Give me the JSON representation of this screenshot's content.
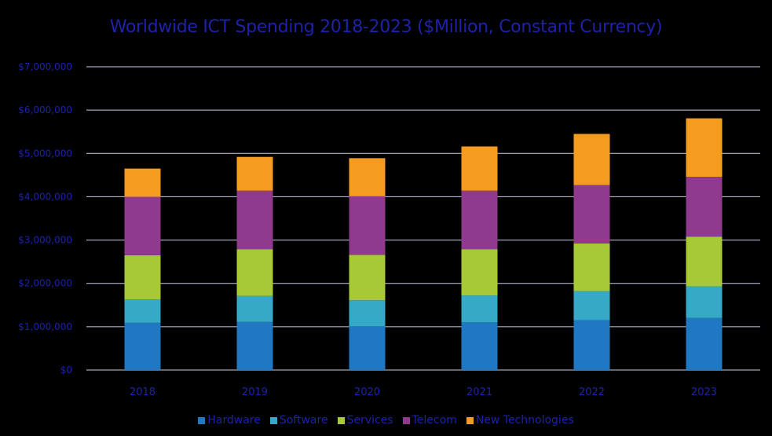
{
  "chart_data": {
    "type": "bar",
    "stacked": true,
    "title": "Worldwide ICT Spending 2018-2023 ($Million, Constant Currency)",
    "xlabel": "",
    "ylabel": "",
    "ylim": [
      0,
      7000000
    ],
    "y_ticks": [
      "$0",
      "$1,000,000",
      "$2,000,000",
      "$3,000,000",
      "$4,000,000",
      "$5,000,000",
      "$6,000,000",
      "$7,000,000"
    ],
    "grid": true,
    "legend_position": "bottom",
    "categories": [
      "2018",
      "2019",
      "2020",
      "2021",
      "2022",
      "2023"
    ],
    "series": [
      {
        "name": "Hardware",
        "color": "#1f78c1",
        "values": [
          1090000,
          1110000,
          1010000,
          1100000,
          1150000,
          1200000
        ]
      },
      {
        "name": "Software",
        "color": "#36a9c6",
        "values": [
          540000,
          600000,
          600000,
          620000,
          670000,
          730000
        ]
      },
      {
        "name": "Services",
        "color": "#a7c936",
        "values": [
          1020000,
          1080000,
          1050000,
          1070000,
          1100000,
          1150000
        ]
      },
      {
        "name": "Telecom",
        "color": "#8f3a8c",
        "values": [
          1350000,
          1350000,
          1350000,
          1350000,
          1350000,
          1380000
        ]
      },
      {
        "name": "New Technologies",
        "color": "#f59b1f",
        "values": [
          650000,
          780000,
          880000,
          1020000,
          1180000,
          1350000
        ]
      }
    ]
  }
}
